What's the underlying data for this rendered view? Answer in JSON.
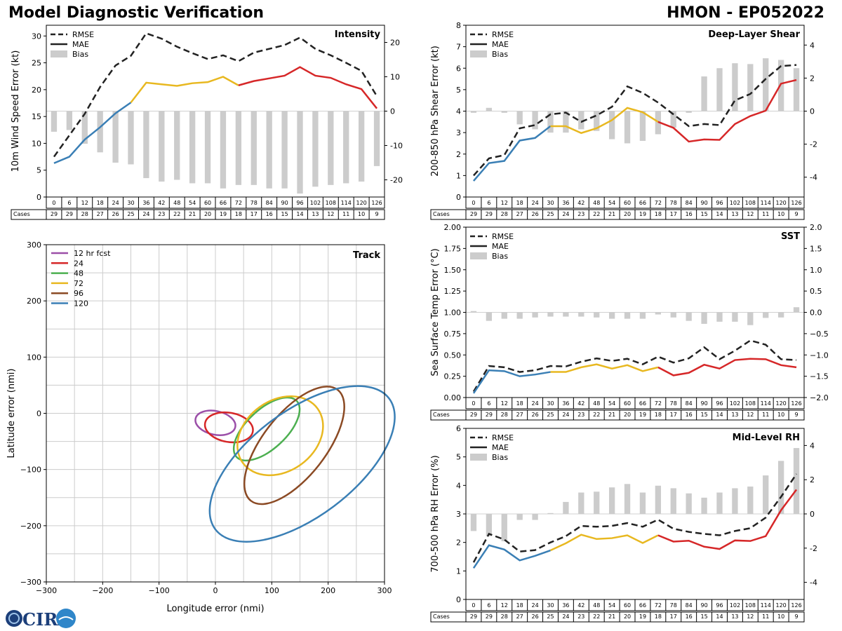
{
  "page": {
    "title": "Model Diagnostic Verification",
    "storm_id": "HMON - EP052022",
    "logo_text": "CIRA"
  },
  "colors": {
    "rmse": "#222222",
    "bias": "#cccccc",
    "grid": "#cccccc",
    "seg_blue": "#3a7fb5",
    "seg_yellow": "#e8b820",
    "seg_red": "#d62728"
  },
  "forecast_hours": [
    0,
    6,
    12,
    18,
    24,
    30,
    36,
    42,
    48,
    54,
    60,
    66,
    72,
    78,
    84,
    90,
    96,
    102,
    108,
    114,
    120,
    126
  ],
  "cases": [
    29,
    29,
    28,
    27,
    26,
    25,
    24,
    23,
    22,
    21,
    20,
    19,
    18,
    17,
    16,
    15,
    14,
    13,
    12,
    11,
    10,
    9
  ],
  "cases_label": "Cases",
  "legend_labels": {
    "rmse": "RMSE",
    "mae": "MAE",
    "bias": "Bias"
  },
  "chart_data": [
    {
      "id": "intensity",
      "type": "line",
      "title": "Intensity",
      "ylabel": "10m Wind Speed Error (kt)",
      "ylim": [
        0,
        32
      ],
      "yticks": [
        0,
        5,
        10,
        15,
        20,
        25,
        30
      ],
      "y2lim": [
        -25,
        25
      ],
      "y2ticks": [
        -20,
        -10,
        0,
        10,
        20
      ],
      "series": [
        {
          "name": "RMSE",
          "values": [
            7.5,
            11.5,
            15.5,
            20.5,
            24.5,
            26.3,
            30.5,
            29.5,
            28.0,
            26.8,
            25.7,
            26.4,
            25.3,
            26.9,
            27.6,
            28.3,
            29.7,
            27.6,
            26.4,
            25.0,
            23.5,
            18.8
          ]
        },
        {
          "name": "MAE",
          "values": [
            6.3,
            7.5,
            10.7,
            13.0,
            15.6,
            17.6,
            21.3,
            21.0,
            20.7,
            21.2,
            21.4,
            22.4,
            20.8,
            21.6,
            22.1,
            22.6,
            24.2,
            22.6,
            22.2,
            21.0,
            20.1,
            16.5
          ]
        },
        {
          "name": "Bias",
          "values": [
            -6,
            -5.5,
            -9.5,
            -12,
            -15,
            -15.5,
            -19.5,
            -20.5,
            -20,
            -21,
            -21,
            -22.5,
            -21.5,
            -21.5,
            -22.5,
            -22.5,
            -24,
            -22,
            -21.5,
            -21,
            -20.5,
            -16
          ]
        }
      ]
    },
    {
      "id": "shear",
      "type": "line",
      "title": "Deep-Layer Shear",
      "ylabel": "200-850 hPa Shear Error (kt)",
      "ylim": [
        0,
        8
      ],
      "yticks": [
        0,
        1,
        2,
        3,
        4,
        5,
        6,
        7,
        8
      ],
      "y2lim": [
        -5.2,
        5.2
      ],
      "y2ticks": [
        -4,
        -2,
        0,
        2,
        4
      ],
      "series": [
        {
          "name": "RMSE",
          "values": [
            1.0,
            1.8,
            1.95,
            3.2,
            3.35,
            3.85,
            3.93,
            3.5,
            3.8,
            4.2,
            5.15,
            4.85,
            4.4,
            3.85,
            3.3,
            3.4,
            3.35,
            4.5,
            4.8,
            5.5,
            6.1,
            6.15
          ]
        },
        {
          "name": "MAE",
          "values": [
            0.75,
            1.58,
            1.68,
            2.63,
            2.75,
            3.3,
            3.3,
            2.98,
            3.2,
            3.58,
            4.15,
            3.95,
            3.5,
            3.22,
            2.58,
            2.68,
            2.66,
            3.4,
            3.77,
            4.02,
            5.28,
            5.45
          ]
        },
        {
          "name": "Bias",
          "values": [
            -0.1,
            0.2,
            -0.1,
            -0.8,
            -1.1,
            -1.3,
            -1.3,
            -1.1,
            -1.2,
            -1.7,
            -1.95,
            -1.8,
            -1.4,
            -1.0,
            -0.1,
            2.1,
            2.6,
            2.9,
            2.85,
            3.2,
            3.1,
            2.6
          ]
        }
      ]
    },
    {
      "id": "sst",
      "type": "line",
      "title": "SST",
      "ylabel": "Sea Surface Temp Error (°C)",
      "ylim": [
        0,
        2
      ],
      "yticks": [
        "0.00",
        "0.25",
        "0.50",
        "0.75",
        "1.00",
        "1.25",
        "1.50",
        "1.75",
        "2.00"
      ],
      "y2lim": [
        -2,
        2
      ],
      "y2ticks": [
        "−2.0",
        "−1.5",
        "−1.0",
        "−0.5",
        "0.0",
        "0.5",
        "1.0",
        "1.5",
        "2.0"
      ],
      "series": [
        {
          "name": "RMSE",
          "values": [
            0.07,
            0.37,
            0.355,
            0.3,
            0.32,
            0.37,
            0.365,
            0.42,
            0.46,
            0.43,
            0.455,
            0.39,
            0.48,
            0.41,
            0.46,
            0.59,
            0.45,
            0.55,
            0.67,
            0.62,
            0.45,
            0.44
          ]
        },
        {
          "name": "MAE",
          "values": [
            0.05,
            0.32,
            0.31,
            0.25,
            0.27,
            0.3,
            0.3,
            0.355,
            0.39,
            0.34,
            0.38,
            0.31,
            0.355,
            0.26,
            0.29,
            0.385,
            0.34,
            0.44,
            0.455,
            0.45,
            0.38,
            0.355
          ]
        },
        {
          "name": "Bias",
          "values": [
            0.03,
            -0.2,
            -0.15,
            -0.15,
            -0.12,
            -0.1,
            -0.1,
            -0.1,
            -0.12,
            -0.15,
            -0.15,
            -0.15,
            -0.05,
            -0.12,
            -0.2,
            -0.27,
            -0.22,
            -0.22,
            -0.3,
            -0.13,
            -0.12,
            0.12
          ]
        }
      ]
    },
    {
      "id": "rh",
      "type": "line",
      "title": "Mid-Level RH",
      "ylabel": "700-500 hPa RH Error (%)",
      "ylim": [
        0,
        6
      ],
      "yticks": [
        0,
        1,
        2,
        3,
        4,
        5,
        6
      ],
      "y2lim": [
        -5,
        5
      ],
      "y2ticks": [
        -4,
        -2,
        0,
        2,
        4
      ],
      "series": [
        {
          "name": "RMSE",
          "values": [
            1.3,
            2.3,
            2.1,
            1.68,
            1.73,
            2.0,
            2.22,
            2.58,
            2.55,
            2.58,
            2.68,
            2.55,
            2.8,
            2.48,
            2.37,
            2.3,
            2.25,
            2.4,
            2.5,
            2.87,
            3.6,
            4.4
          ]
        },
        {
          "name": "MAE",
          "values": [
            1.1,
            1.9,
            1.75,
            1.37,
            1.53,
            1.72,
            1.97,
            2.27,
            2.12,
            2.15,
            2.25,
            1.98,
            2.25,
            2.03,
            2.06,
            1.85,
            1.77,
            2.07,
            2.05,
            2.22,
            3.13,
            3.85
          ]
        },
        {
          "name": "Bias",
          "values": [
            -1,
            -1.3,
            -1.6,
            -0.35,
            -0.35,
            0.05,
            0.7,
            1.25,
            1.3,
            1.55,
            1.75,
            1.25,
            1.65,
            1.5,
            1.2,
            0.95,
            1.25,
            1.5,
            1.6,
            2.25,
            3.1,
            3.85
          ]
        }
      ]
    },
    {
      "id": "track",
      "type": "scatter",
      "title": "Track",
      "xlabel": "Longitude error (nmi)",
      "ylabel": "Latitude error (nmi)",
      "xlim": [
        -300,
        300
      ],
      "ylim": [
        -300,
        300
      ],
      "xticks": [
        -300,
        -200,
        -100,
        0,
        100,
        200,
        300
      ],
      "yticks": [
        -300,
        -200,
        -100,
        0,
        100,
        200,
        300
      ],
      "ellipses": [
        {
          "label": "12 hr fcst",
          "color": "#9b4fa8",
          "cx": 0,
          "cy": -17,
          "rx": 36,
          "ry": 21,
          "angle_deg": -12
        },
        {
          "label": "24",
          "color": "#d62728",
          "cx": 24,
          "cy": -25,
          "rx": 43,
          "ry": 26,
          "angle_deg": -10
        },
        {
          "label": "48",
          "color": "#4caf50",
          "cx": 91,
          "cy": -28,
          "rx": 73,
          "ry": 35,
          "angle_deg": 43
        },
        {
          "label": "72",
          "color": "#e8b820",
          "cx": 115,
          "cy": -40,
          "rx": 82,
          "ry": 63,
          "angle_deg": 36
        },
        {
          "label": "96",
          "color": "#8b4a24",
          "cx": 140,
          "cy": -57,
          "rx": 125,
          "ry": 56,
          "angle_deg": 52
        },
        {
          "label": "120",
          "color": "#3a7fb5",
          "cx": 154,
          "cy": -90,
          "rx": 193,
          "ry": 94,
          "angle_deg": 37
        }
      ]
    }
  ]
}
